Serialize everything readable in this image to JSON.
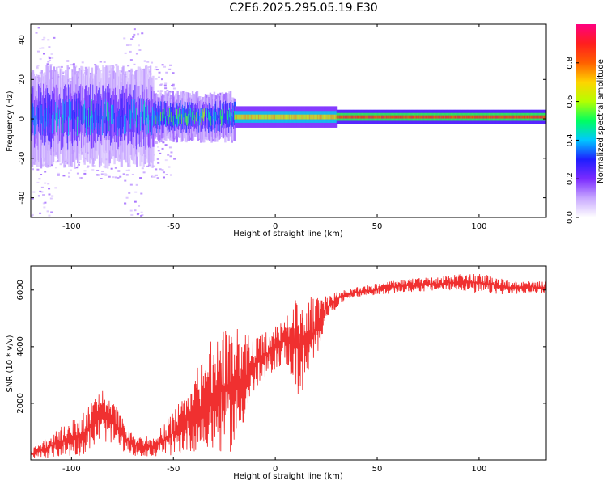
{
  "title": "C2E6.2025.295.05.19.E30",
  "chart_data": [
    {
      "type": "heatmap",
      "name": "spectrogram",
      "xlabel": "Height of straight line (km)",
      "ylabel": "Frequency (Hz)",
      "xlim": [
        -120,
        133
      ],
      "ylim": [
        -50,
        48
      ],
      "xticks": [
        -100,
        -50,
        0,
        50,
        100
      ],
      "yticks": [
        -40,
        -20,
        0,
        20,
        40
      ],
      "colorbar": {
        "label": "Normalized spectral amplitude",
        "range": [
          0,
          1
        ],
        "ticks": [
          "0.0",
          "0.2",
          "0.4",
          "0.6",
          "0.8"
        ],
        "tick_values": [
          0.0,
          0.2,
          0.4,
          0.6,
          0.8
        ],
        "colors": [
          "#ffffff",
          "#c8a8ff",
          "#7b2bff",
          "#1e1eff",
          "#00c8ff",
          "#00ff60",
          "#b4ff00",
          "#ffd400",
          "#ff6000",
          "#ff1e1e",
          "#ff0080"
        ]
      },
      "ridge": {
        "frequency_hz": 1,
        "segments": [
          {
            "x_range": [
              -120,
              -60
            ],
            "peak_amplitude": 0.35,
            "spread_hz": 12
          },
          {
            "x_range": [
              -60,
              -20
            ],
            "peak_amplitude": 0.45,
            "spread_hz": 6
          },
          {
            "x_range": [
              -20,
              30
            ],
            "peak_amplitude": 0.75,
            "spread_hz": 3
          },
          {
            "x_range": [
              30,
              133
            ],
            "peak_amplitude": 0.95,
            "spread_hz": 2
          }
        ]
      }
    },
    {
      "type": "line",
      "name": "snr",
      "xlabel": "Height of straight line (km)",
      "ylabel": "SNR (10 * v/v)",
      "xlim": [
        -120,
        133
      ],
      "ylim": [
        0,
        6850
      ],
      "xticks": [
        -100,
        -50,
        0,
        50,
        100
      ],
      "yticks": [
        2000,
        4000,
        6000
      ],
      "color": "#f03030",
      "envelope": [
        {
          "x": -120,
          "low": 50,
          "high": 350
        },
        {
          "x": -105,
          "low": 100,
          "high": 1200
        },
        {
          "x": -95,
          "low": 150,
          "high": 1600
        },
        {
          "x": -85,
          "low": 700,
          "high": 2500
        },
        {
          "x": -78,
          "low": 400,
          "high": 1900
        },
        {
          "x": -70,
          "low": 150,
          "high": 900
        },
        {
          "x": -60,
          "low": 100,
          "high": 800
        },
        {
          "x": -50,
          "low": 150,
          "high": 1700
        },
        {
          "x": -40,
          "low": 300,
          "high": 3000
        },
        {
          "x": -30,
          "low": 200,
          "high": 4500
        },
        {
          "x": -20,
          "low": 300,
          "high": 4700
        },
        {
          "x": -10,
          "low": 2400,
          "high": 4300
        },
        {
          "x": 0,
          "low": 3200,
          "high": 4700
        },
        {
          "x": 5,
          "low": 3400,
          "high": 5200
        },
        {
          "x": 12,
          "low": 2100,
          "high": 5900
        },
        {
          "x": 20,
          "low": 3500,
          "high": 5700
        },
        {
          "x": 25,
          "low": 5000,
          "high": 5800
        },
        {
          "x": 35,
          "low": 5700,
          "high": 6050
        },
        {
          "x": 60,
          "low": 5900,
          "high": 6350
        },
        {
          "x": 90,
          "low": 6000,
          "high": 6550
        },
        {
          "x": 100,
          "low": 5850,
          "high": 6650
        },
        {
          "x": 115,
          "low": 5850,
          "high": 6350
        },
        {
          "x": 133,
          "low": 5900,
          "high": 6300
        }
      ]
    }
  ]
}
